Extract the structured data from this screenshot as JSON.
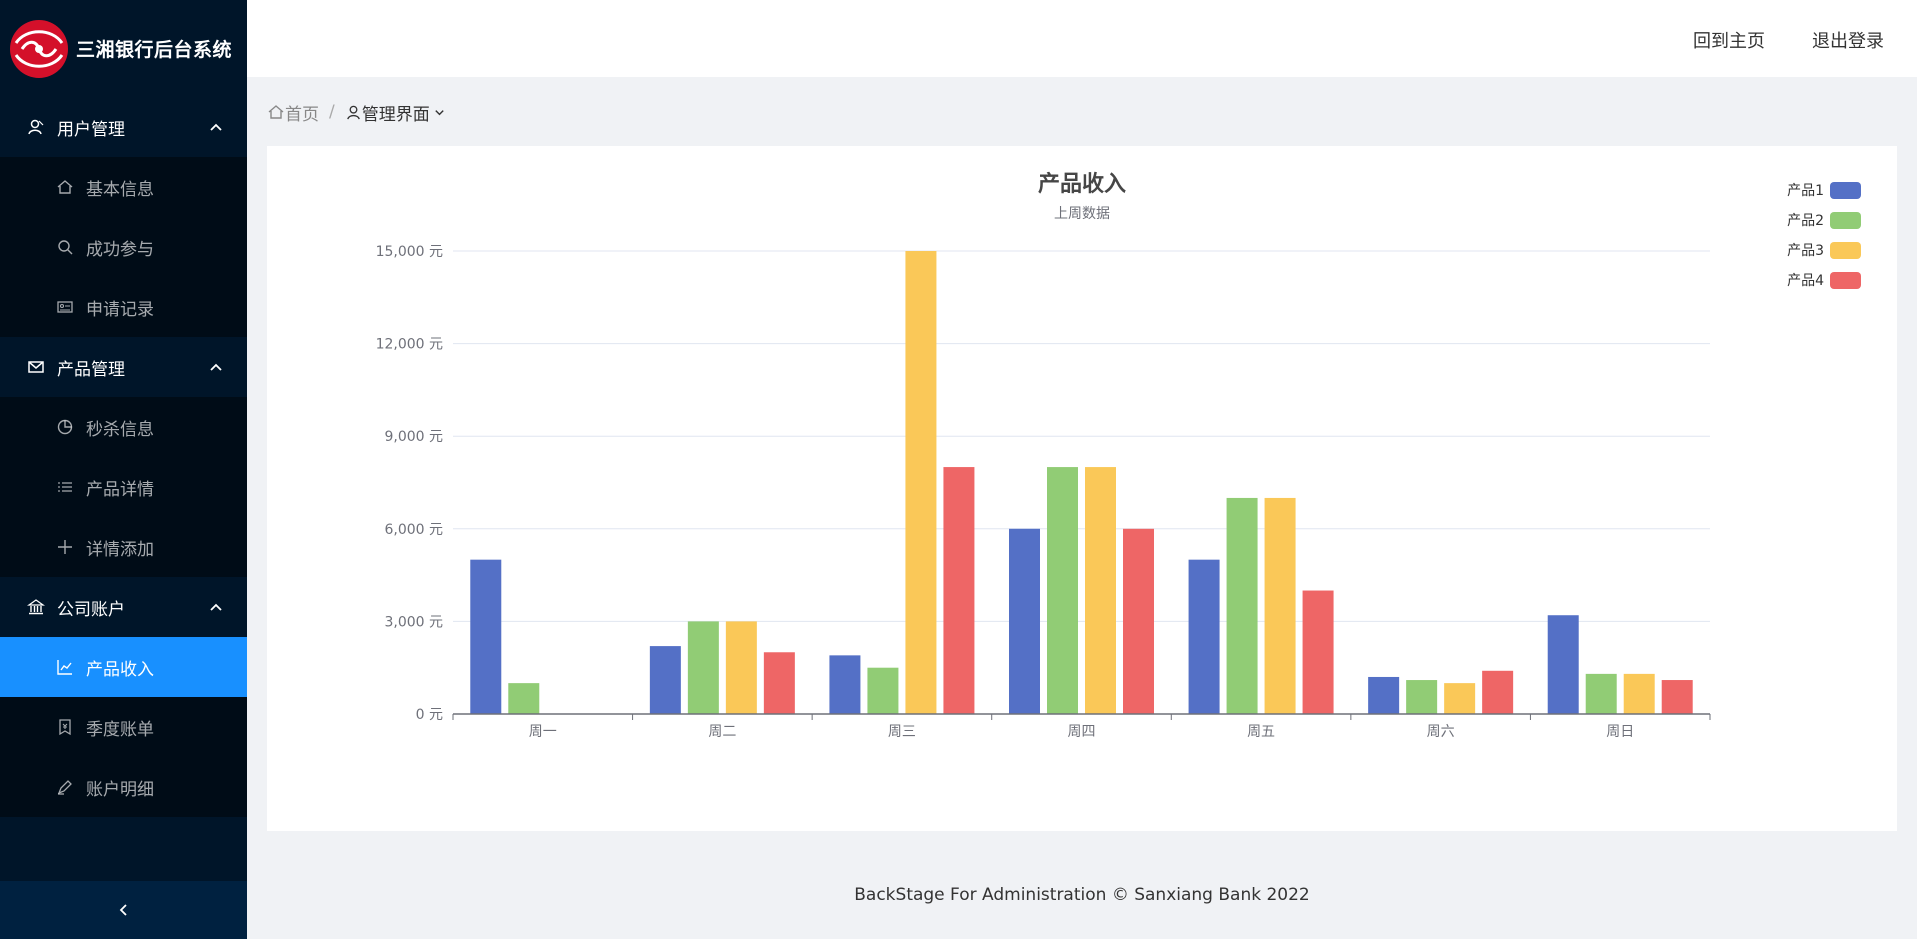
{
  "app": {
    "title": "三湘银行后台系统"
  },
  "header": {
    "home_link": "回到主页",
    "logout_link": "退出登录"
  },
  "breadcrumb": {
    "home": "首页",
    "separator": "/",
    "current": "管理界面"
  },
  "sidebar": {
    "groups": [
      {
        "label": "用户管理",
        "icon": "user-icon",
        "items": [
          {
            "label": "基本信息",
            "icon": "home-icon"
          },
          {
            "label": "成功参与",
            "icon": "search-icon"
          },
          {
            "label": "申请记录",
            "icon": "id-card-icon"
          }
        ]
      },
      {
        "label": "产品管理",
        "icon": "mail-icon",
        "items": [
          {
            "label": "秒杀信息",
            "icon": "pie-icon"
          },
          {
            "label": "产品详情",
            "icon": "list-icon"
          },
          {
            "label": "详情添加",
            "icon": "plus-icon"
          }
        ]
      },
      {
        "label": "公司账户",
        "icon": "bank-icon",
        "items": [
          {
            "label": "产品收入",
            "icon": "line-chart-icon"
          },
          {
            "label": "季度账单",
            "icon": "bill-icon"
          },
          {
            "label": "账户明细",
            "icon": "pen-icon"
          }
        ]
      }
    ]
  },
  "footer": {
    "text": "BackStage For Administration © Sanxiang Bank 2022"
  },
  "colors": {
    "sidebar_bg": "#001529",
    "submenu_bg": "#000c17",
    "active": "#1890ff"
  },
  "chart_data": {
    "type": "bar",
    "title": "产品收入",
    "subtitle": "上周数据",
    "categories": [
      "周一",
      "周二",
      "周三",
      "周四",
      "周五",
      "周六",
      "周日"
    ],
    "series": [
      {
        "name": "产品1",
        "color": "#5470c6",
        "values": [
          5000,
          2200,
          1900,
          6000,
          5000,
          1200,
          3200
        ]
      },
      {
        "name": "产品2",
        "color": "#91cc75",
        "values": [
          1000,
          3000,
          1500,
          8000,
          7000,
          1100,
          1300
        ]
      },
      {
        "name": "产品3",
        "color": "#fac858",
        "values": [
          0,
          3000,
          15000,
          8000,
          7000,
          1000,
          1300
        ]
      },
      {
        "name": "产品4",
        "color": "#ee6666",
        "values": [
          0,
          2000,
          8000,
          6000,
          4000,
          1400,
          1100
        ]
      }
    ],
    "ylim": [
      0,
      15000
    ],
    "yticks": [
      "0 元",
      "3,000 元",
      "6,000 元",
      "9,000 元",
      "12,000 元",
      "15,000 元"
    ],
    "grid": true,
    "legend_position": "top-right"
  }
}
